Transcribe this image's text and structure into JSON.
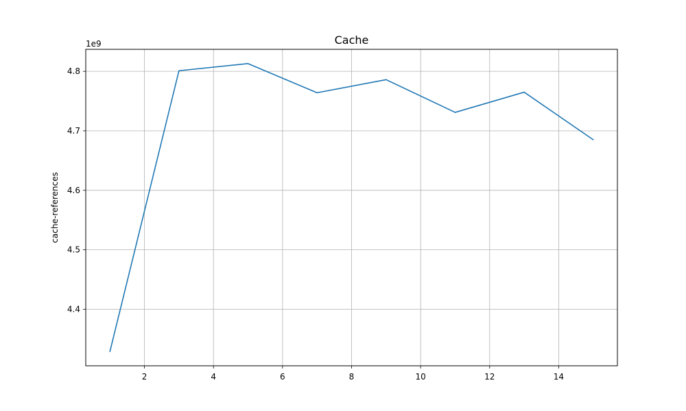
{
  "chart_data": {
    "type": "line",
    "title": "Cache",
    "xlabel": "",
    "ylabel": "cache-references",
    "y_offset_label": "1e9",
    "x": [
      1,
      3,
      5,
      7,
      9,
      11,
      13,
      15
    ],
    "series": [
      {
        "values": [
          4329000000,
          4801000000,
          4813000000,
          4764000000,
          4786000000,
          4731000000,
          4765000000,
          4685000000
        ],
        "color": "#1f77b4"
      }
    ],
    "xlim": [
      0.3,
      15.7
    ],
    "ylim": [
      4305000000,
      4837000000
    ],
    "x_ticks": [
      2,
      4,
      6,
      8,
      10,
      12,
      14
    ],
    "x_tick_labels": [
      "2",
      "4",
      "6",
      "8",
      "10",
      "12",
      "14"
    ],
    "y_ticks": [
      4400000000,
      4500000000,
      4600000000,
      4700000000,
      4800000000
    ],
    "y_tick_labels": [
      "4.4",
      "4.5",
      "4.6",
      "4.7",
      "4.8"
    ],
    "grid": true,
    "legend": false
  }
}
